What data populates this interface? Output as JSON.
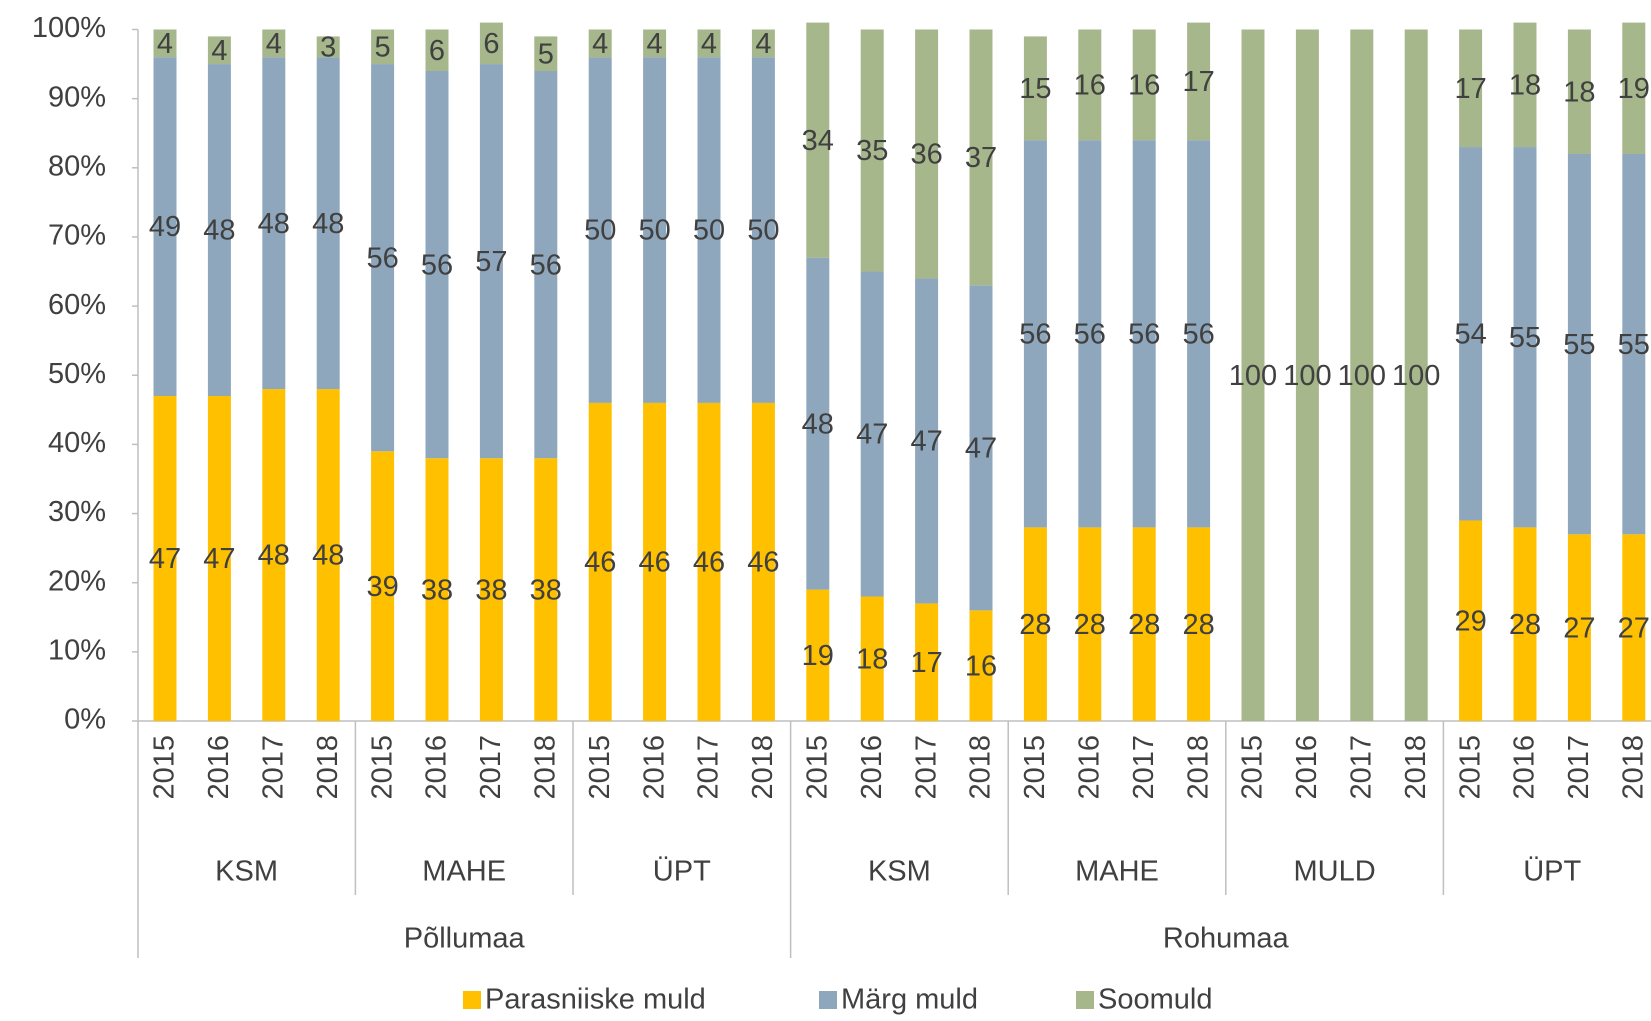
{
  "chart_data": {
    "type": "stacked_bar_percent",
    "category_groups": [
      {
        "name": "Põllumaa",
        "groups": [
          {
            "name": "KSM",
            "categories": [
              "2015",
              "2016",
              "2017",
              "2018"
            ]
          },
          {
            "name": "MAHE",
            "categories": [
              "2015",
              "2016",
              "2017",
              "2018"
            ]
          },
          {
            "name": "ÜPT",
            "categories": [
              "2015",
              "2016",
              "2017",
              "2018"
            ]
          }
        ]
      },
      {
        "name": "Rohumaa",
        "groups": [
          {
            "name": "KSM",
            "categories": [
              "2015",
              "2016",
              "2017",
              "2018"
            ]
          },
          {
            "name": "MAHE",
            "categories": [
              "2015",
              "2016",
              "2017",
              "2018"
            ]
          },
          {
            "name": "MULD",
            "categories": [
              "2015",
              "2016",
              "2017",
              "2018"
            ]
          },
          {
            "name": "ÜPT",
            "categories": [
              "2015",
              "2016",
              "2017",
              "2018"
            ]
          }
        ]
      }
    ],
    "series": [
      {
        "name": "Parasniiske muld",
        "color": "#ffc000",
        "values": [
          47,
          47,
          48,
          48,
          39,
          38,
          38,
          38,
          46,
          46,
          46,
          46,
          19,
          18,
          17,
          16,
          28,
          28,
          28,
          28,
          null,
          null,
          null,
          null,
          29,
          28,
          27,
          27
        ]
      },
      {
        "name": "Märg muld",
        "color": "#8fa7bc",
        "values": [
          49,
          48,
          48,
          48,
          56,
          56,
          57,
          56,
          50,
          50,
          50,
          50,
          48,
          47,
          47,
          47,
          56,
          56,
          56,
          56,
          null,
          null,
          null,
          null,
          54,
          55,
          55,
          55
        ]
      },
      {
        "name": "Soomuld",
        "color": "#a6b78b",
        "values": [
          4,
          4,
          4,
          3,
          5,
          6,
          6,
          5,
          4,
          4,
          4,
          4,
          34,
          35,
          36,
          37,
          15,
          16,
          16,
          17,
          100,
          100,
          100,
          100,
          17,
          18,
          18,
          19
        ]
      }
    ],
    "ylim": [
      0,
      100
    ],
    "yticks": [
      {
        "value": 0,
        "label": "0%"
      },
      {
        "value": 10,
        "label": "10%"
      },
      {
        "value": 20,
        "label": "20%"
      },
      {
        "value": 30,
        "label": "30%"
      },
      {
        "value": 40,
        "label": "40%"
      },
      {
        "value": 50,
        "label": "50%"
      },
      {
        "value": 60,
        "label": "60%"
      },
      {
        "value": 70,
        "label": "70%"
      },
      {
        "value": 80,
        "label": "80%"
      },
      {
        "value": 90,
        "label": "90%"
      },
      {
        "value": 100,
        "label": "100%"
      }
    ],
    "grid": false,
    "legend": "bottom"
  }
}
